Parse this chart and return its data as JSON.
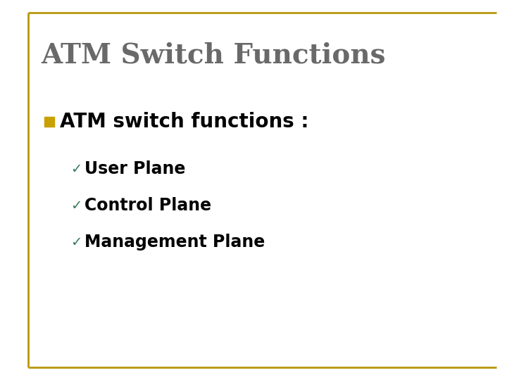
{
  "title": "ATM Switch Functions",
  "title_color": "#696969",
  "title_fontsize": 28,
  "bullet_text": "ATM switch functions :",
  "bullet_color": "#000000",
  "bullet_fontsize": 20,
  "bullet_square_color": "#C8A000",
  "sub_items": [
    "User Plane",
    "Control Plane",
    "Management Plane"
  ],
  "sub_item_color": "#000000",
  "sub_item_fontsize": 17,
  "check_color": "#3a7a5a",
  "background_color": "#ffffff",
  "border_color": "#B8960C"
}
